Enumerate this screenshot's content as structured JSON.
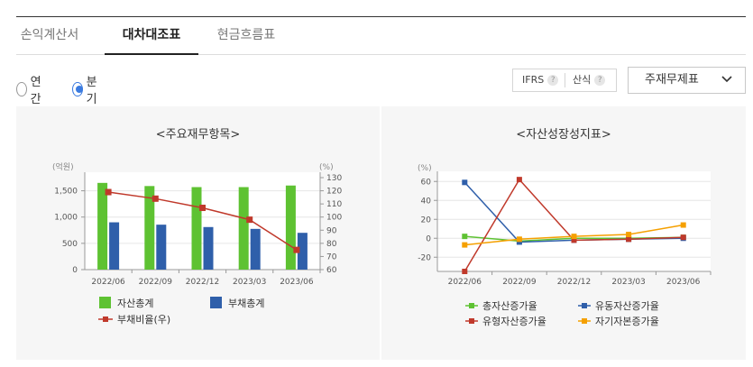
{
  "tabs": [
    {
      "label": "손익계산서",
      "active": false
    },
    {
      "label": "대차대조표",
      "active": true
    },
    {
      "label": "현금흐름표",
      "active": false
    }
  ],
  "period": {
    "options": [
      {
        "label": "연간",
        "selected": false
      },
      {
        "label": "분기",
        "selected": true
      }
    ]
  },
  "toolbar": {
    "ifrs_label": "IFRS",
    "formula_label": "산식",
    "help_glyph": "?",
    "select_value": "주재무제표",
    "help_icon": "question-icon",
    "select_icon": "chevron-down-icon"
  },
  "colors": {
    "green": "#5ec232",
    "blue": "#2f5faa",
    "red": "#c0392b",
    "orange": "#f5a000",
    "panel_bg": "#f6f6f6",
    "accent": "#3b7be0"
  },
  "chart_left_title": "<주요재무항목>",
  "chart_right_title": "<자산성장성지표>",
  "chart_data": [
    {
      "type": "bar",
      "title": "<주요재무항목>",
      "ylabel": "(억원)",
      "y2label": "(%)",
      "categories": [
        "2022/06",
        "2022/09",
        "2022/12",
        "2023/03",
        "2023/06"
      ],
      "ylim": [
        0,
        1750
      ],
      "yticks": [
        "0",
        "500",
        "1,000",
        "1,500"
      ],
      "y2lim": [
        60,
        130
      ],
      "y2ticks": [
        "60",
        "70",
        "80",
        "90",
        "100",
        "110",
        "120",
        "130"
      ],
      "series": [
        {
          "name": "자산총계",
          "type": "bar",
          "axis": "left",
          "values": [
            1650,
            1590,
            1570,
            1570,
            1600
          ]
        },
        {
          "name": "부채총계",
          "type": "bar",
          "axis": "left",
          "values": [
            900,
            855,
            810,
            775,
            700
          ]
        },
        {
          "name": "부채비율(우)",
          "type": "line",
          "axis": "right",
          "values": [
            119,
            114,
            107,
            98,
            75
          ]
        }
      ],
      "legend_position": "bottom"
    },
    {
      "type": "line",
      "title": "<자산성장성지표>",
      "ylabel": "(%)",
      "categories": [
        "2022/06",
        "2022/09",
        "2022/12",
        "2023/03",
        "2023/06"
      ],
      "ylim": [
        -35,
        65
      ],
      "yticks": [
        "-20",
        "0",
        "20",
        "40",
        "60"
      ],
      "series": [
        {
          "name": "총자산증가율",
          "values": [
            2,
            -3,
            0,
            0,
            1
          ]
        },
        {
          "name": "유동자산증가율",
          "values": [
            59,
            -4,
            -2,
            -1,
            0
          ]
        },
        {
          "name": "유형자산증가율",
          "values": [
            -35,
            62,
            -2,
            -1,
            1
          ]
        },
        {
          "name": "자기자본증가율",
          "values": [
            -7,
            -1,
            2,
            4,
            14
          ]
        }
      ],
      "legend_position": "bottom"
    }
  ]
}
